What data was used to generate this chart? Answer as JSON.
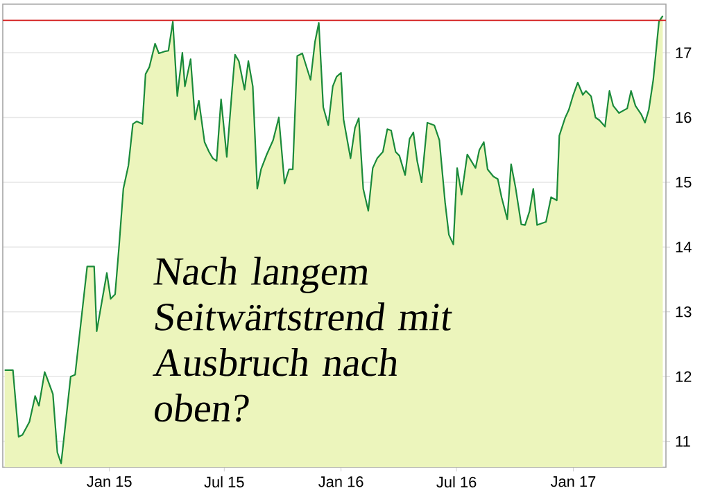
{
  "chart_data": {
    "type": "area",
    "x": [
      "2014-07-20",
      "2014-08-02",
      "2014-08-11",
      "2014-08-17",
      "2014-08-28",
      "2014-09-06",
      "2014-09-12",
      "2014-09-21",
      "2014-09-25",
      "2014-10-04",
      "2014-10-11",
      "2014-10-17",
      "2014-11-01",
      "2014-11-08",
      "2014-11-27",
      "2014-12-08",
      "2014-12-12",
      "2014-12-28",
      "2015-01-03",
      "2015-01-10",
      "2015-01-16",
      "2015-01-23",
      "2015-01-31",
      "2015-02-07",
      "2015-02-13",
      "2015-02-22",
      "2015-02-27",
      "2015-03-05",
      "2015-03-14",
      "2015-03-20",
      "2015-03-29",
      "2015-04-04",
      "2015-04-11",
      "2015-04-18",
      "2015-04-26",
      "2015-04-30",
      "2015-05-09",
      "2015-05-16",
      "2015-05-22",
      "2015-05-31",
      "2015-06-07",
      "2015-06-13",
      "2015-06-19",
      "2015-06-26",
      "2015-07-05",
      "2015-07-13",
      "2015-07-18",
      "2015-07-24",
      "2015-08-02",
      "2015-08-08",
      "2015-08-15",
      "2015-08-22",
      "2015-08-28",
      "2015-09-06",
      "2015-09-16",
      "2015-09-25",
      "2015-10-04",
      "2015-10-11",
      "2015-10-17",
      "2015-10-24",
      "2015-11-01",
      "2015-11-14",
      "2015-11-21",
      "2015-11-27",
      "2015-12-04",
      "2015-12-12",
      "2015-12-19",
      "2015-12-25",
      "2016-01-01",
      "2016-01-05",
      "2016-01-16",
      "2016-01-23",
      "2016-01-29",
      "2016-02-05",
      "2016-02-13",
      "2016-02-20",
      "2016-02-27",
      "2016-03-07",
      "2016-03-14",
      "2016-03-20",
      "2016-03-27",
      "2016-04-02",
      "2016-04-11",
      "2016-04-18",
      "2016-04-24",
      "2016-04-30",
      "2016-05-07",
      "2016-05-16",
      "2016-05-27",
      "2016-06-04",
      "2016-06-13",
      "2016-06-19",
      "2016-06-26",
      "2016-07-02",
      "2016-07-09",
      "2016-07-18",
      "2016-07-26",
      "2016-07-31",
      "2016-08-06",
      "2016-08-13",
      "2016-08-19",
      "2016-08-28",
      "2016-09-04",
      "2016-09-10",
      "2016-09-19",
      "2016-09-25",
      "2016-10-02",
      "2016-10-11",
      "2016-10-17",
      "2016-10-24",
      "2016-10-30",
      "2016-11-05",
      "2016-11-19",
      "2016-11-27",
      "2016-12-06",
      "2016-12-10",
      "2016-12-19",
      "2016-12-25",
      "2017-01-01",
      "2017-01-08",
      "2017-01-16",
      "2017-01-21",
      "2017-01-29",
      "2017-02-05",
      "2017-02-11",
      "2017-02-20",
      "2017-02-27",
      "2017-03-05",
      "2017-03-14",
      "2017-03-27",
      "2017-04-02",
      "2017-04-09",
      "2017-04-18",
      "2017-04-24",
      "2017-04-30",
      "2017-05-07",
      "2017-05-16",
      "2017-05-22"
    ],
    "series": [
      {
        "color": "#1a8a3a",
        "values": [
          12.1,
          12.1,
          11.07,
          11.1,
          11.3,
          11.7,
          11.55,
          12.07,
          11.97,
          11.73,
          10.83,
          10.66,
          12.0,
          12.03,
          13.7,
          13.7,
          12.7,
          13.6,
          13.2,
          13.27,
          13.98,
          14.9,
          15.26,
          15.9,
          15.94,
          15.9,
          16.67,
          16.78,
          17.14,
          16.99,
          17.02,
          17.03,
          17.48,
          16.33,
          17.0,
          16.48,
          16.9,
          15.97,
          16.26,
          15.62,
          15.47,
          15.37,
          15.33,
          16.28,
          15.39,
          16.39,
          16.97,
          16.87,
          16.43,
          16.87,
          16.48,
          14.9,
          15.2,
          15.43,
          15.65,
          16.0,
          14.98,
          15.2,
          15.2,
          16.95,
          16.99,
          16.58,
          17.17,
          17.46,
          16.16,
          15.88,
          16.48,
          16.63,
          16.69,
          15.97,
          15.37,
          15.84,
          15.99,
          14.9,
          14.56,
          15.22,
          15.37,
          15.47,
          15.82,
          15.8,
          15.47,
          15.41,
          15.11,
          15.67,
          15.77,
          15.33,
          15.0,
          15.92,
          15.88,
          15.65,
          14.69,
          14.19,
          14.04,
          15.22,
          14.81,
          15.43,
          15.3,
          15.22,
          15.5,
          15.62,
          15.2,
          15.09,
          15.05,
          14.77,
          14.43,
          15.28,
          14.92,
          14.35,
          14.34,
          14.55,
          14.9,
          14.34,
          14.39,
          14.77,
          14.72,
          15.72,
          15.99,
          16.12,
          16.35,
          16.54,
          16.35,
          16.41,
          16.33,
          16.0,
          15.96,
          15.86,
          16.41,
          16.18,
          16.07,
          16.14,
          16.41,
          16.18,
          16.05,
          15.92,
          16.12,
          16.58,
          17.48,
          17.57
        ]
      }
    ],
    "xlim": [
      "2014-07-17",
      "2017-05-27"
    ],
    "ylim": [
      10.6,
      17.75
    ],
    "xticks": [
      {
        "value": "2015-01-01",
        "label": "Jan 15"
      },
      {
        "value": "2015-07-01",
        "label": "Jul 15"
      },
      {
        "value": "2016-01-01",
        "label": "Jan 16"
      },
      {
        "value": "2016-07-01",
        "label": "Jul 16"
      },
      {
        "value": "2017-01-01",
        "label": "Jan 17"
      }
    ],
    "yticks": [
      11,
      12,
      13,
      14,
      15,
      16,
      17
    ],
    "grid": "y",
    "ref_lines": [
      {
        "axis": "y",
        "value": 17.5,
        "color": "#d42020"
      }
    ],
    "annotations": [
      "Nach langem Seitwärtstrend mit Ausbruch nach oben?"
    ]
  }
}
